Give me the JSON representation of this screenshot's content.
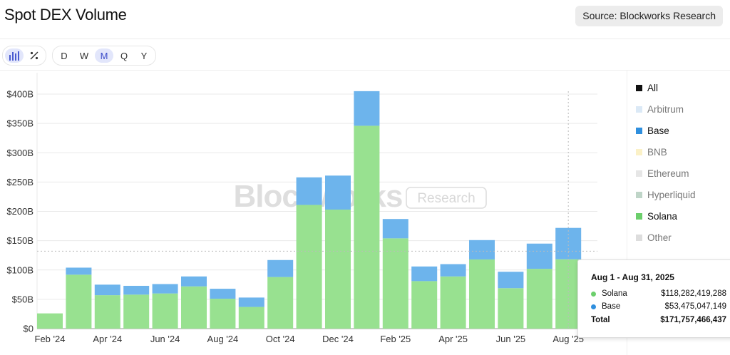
{
  "header": {
    "title": "Spot DEX Volume",
    "source_label": "Source: Blockworks Research"
  },
  "toolbar": {
    "view_icons": [
      {
        "name": "bar-chart-icon",
        "glyph": "▮▮▮",
        "active": true
      },
      {
        "name": "percent-icon",
        "glyph": "⁒",
        "active": false
      }
    ],
    "periods": [
      {
        "label": "D",
        "active": false
      },
      {
        "label": "W",
        "active": false
      },
      {
        "label": "M",
        "active": true
      },
      {
        "label": "Q",
        "active": false
      },
      {
        "label": "Y",
        "active": false
      }
    ]
  },
  "watermark": {
    "brand": "Blockworks",
    "tag": "Research"
  },
  "legend": [
    {
      "label": "All",
      "color": "#111111",
      "active": true
    },
    {
      "label": "Arbitrum",
      "color": "#dbe9f6",
      "active": false
    },
    {
      "label": "Base",
      "color": "#2f8fde",
      "active": true
    },
    {
      "label": "BNB",
      "color": "#fbf1c7",
      "active": false
    },
    {
      "label": "Ethereum",
      "color": "#e6e6e6",
      "active": false
    },
    {
      "label": "Hyperliquid",
      "color": "#bfd5c8",
      "active": false
    },
    {
      "label": "Solana",
      "color": "#6ccf6c",
      "active": true
    },
    {
      "label": "Other",
      "color": "#dddddd",
      "active": false
    }
  ],
  "tooltip": {
    "period": "Aug 1 - Aug 31, 2025",
    "rows": [
      {
        "name": "Solana",
        "value": "$118,282,419,288",
        "color": "#6ccf6c"
      },
      {
        "name": "Base",
        "value": "$53,475,047,149",
        "color": "#2f8fde"
      }
    ],
    "total_label": "Total",
    "total_value": "$171,757,466,437"
  },
  "chart_data": {
    "type": "bar",
    "stacked": true,
    "categories": [
      "Feb '24",
      "Mar '24",
      "Apr '24",
      "May '24",
      "Jun '24",
      "Jul '24",
      "Aug '24",
      "Sep '24",
      "Oct '24",
      "Nov '24",
      "Dec '24",
      "Jan '25",
      "Feb '25",
      "Mar '25",
      "Apr '25",
      "May '25",
      "Jun '25",
      "Jul '25",
      "Aug '25"
    ],
    "x_tick_labels": [
      "Feb '24",
      "",
      "Apr '24",
      "",
      "Jun '24",
      "",
      "Aug '24",
      "",
      "Oct '24",
      "",
      "Dec '24",
      "",
      "Feb '25",
      "",
      "Apr '25",
      "",
      "Jun '25",
      "",
      "Aug '25"
    ],
    "series": [
      {
        "name": "Solana",
        "color": "#98e190",
        "values": [
          26,
          92,
          57,
          58,
          60,
          72,
          51,
          37,
          88,
          211,
          203,
          346,
          154,
          81,
          89,
          118,
          69,
          102,
          118.3
        ]
      },
      {
        "name": "Base",
        "color": "#6db4ec",
        "values": [
          0,
          12,
          18,
          15,
          16,
          17,
          17,
          16,
          29,
          47,
          58,
          59,
          33,
          25,
          21,
          33,
          28,
          43,
          53.5
        ]
      }
    ],
    "ylim": [
      0,
      400
    ],
    "y_ticks": [
      0,
      50,
      100,
      150,
      200,
      250,
      300,
      350,
      400
    ],
    "y_tick_labels": [
      "$0",
      "$50B",
      "$100B",
      "$150B",
      "$200B",
      "$250B",
      "$300B",
      "$350B",
      "$400B"
    ],
    "crosshair_value": 132,
    "xlabel": "",
    "ylabel": "",
    "grid": "horizontal"
  }
}
